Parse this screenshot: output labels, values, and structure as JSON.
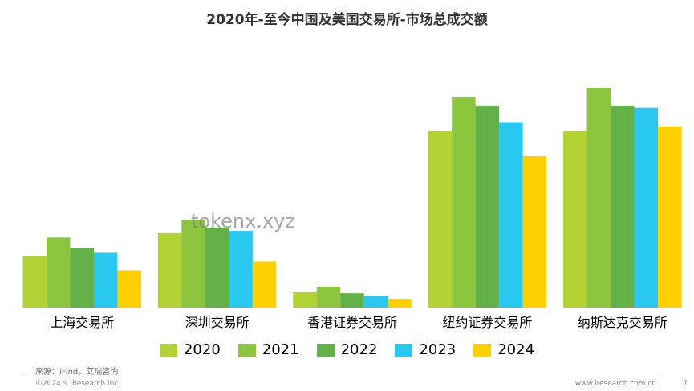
{
  "title": "2020年-至今中国及美国交易所-市场总成交额",
  "source": "来源：iFind，艾瑞咨询",
  "copyright": "©2024.9 iResearch Inc.",
  "site": "www.iresearch.com.cn",
  "page_number": "7",
  "watermark": "tokenx.xyz",
  "colors": {
    "2020": "#b3d334",
    "2021": "#8cc63f",
    "2022": "#62b046",
    "2023": "#28c8f0",
    "2024": "#ffd000"
  },
  "chart_data": {
    "type": "bar",
    "title": "2020年-至今中国及美国交易所-市场总成交额",
    "categories": [
      "上海交易所",
      "深圳交易所",
      "香港证券交易所",
      "纽约证券交易所",
      "纳斯达克交易所"
    ],
    "legend_position": "bottom",
    "grid": false,
    "ylim": [
      0,
      100
    ],
    "series": [
      {
        "name": "2020",
        "values": [
          23.5,
          34,
          7,
          80.5,
          80.5
        ]
      },
      {
        "name": "2021",
        "values": [
          32,
          40,
          9.5,
          96,
          100
        ]
      },
      {
        "name": "2022",
        "values": [
          27,
          36.5,
          6.5,
          92,
          92
        ]
      },
      {
        "name": "2023",
        "values": [
          25,
          35,
          5.5,
          84.5,
          91
        ]
      },
      {
        "name": "2024",
        "values": [
          17,
          21,
          4,
          69,
          82.5
        ]
      }
    ]
  }
}
